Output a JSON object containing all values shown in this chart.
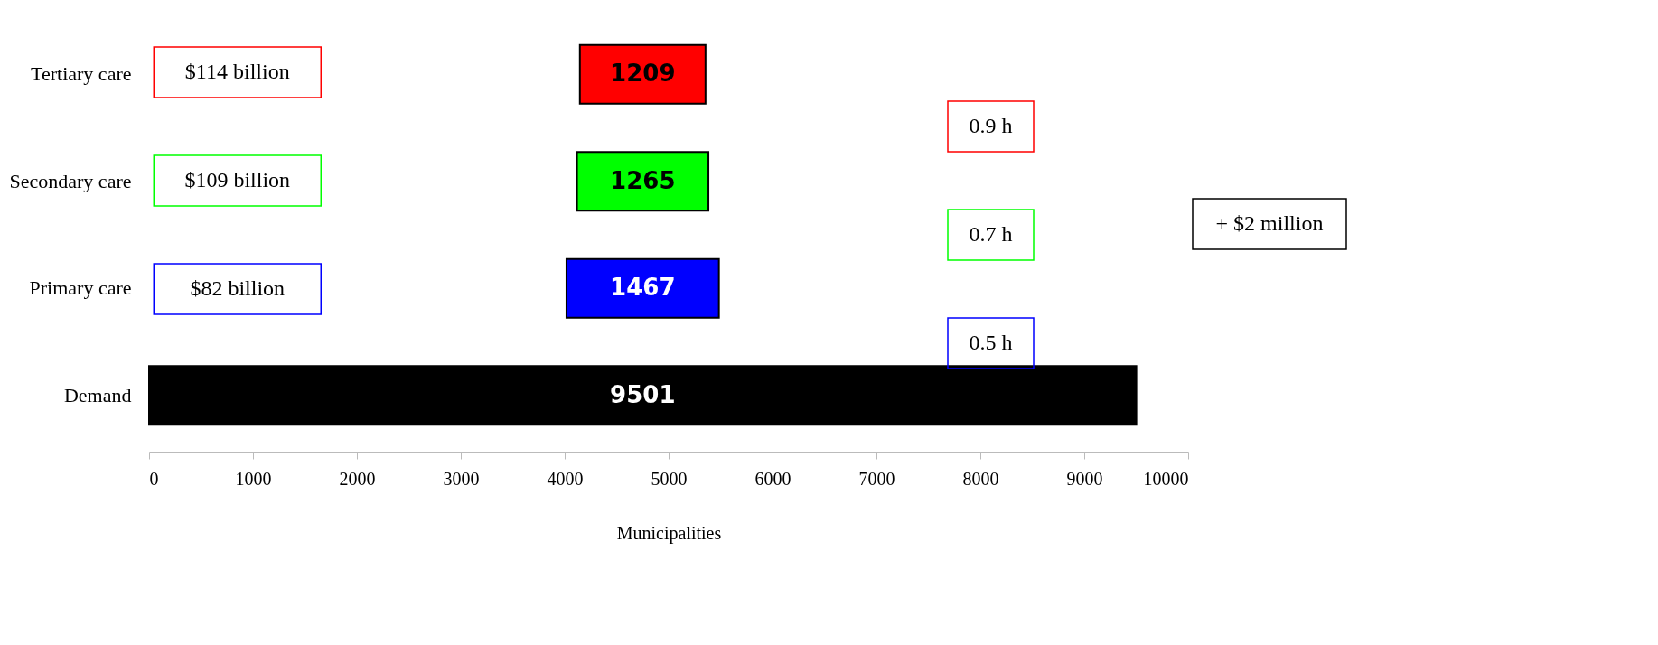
{
  "chart_data": {
    "type": "bar",
    "orientation": "horizontal",
    "categories": [
      "Tertiary care",
      "Secondary care",
      "Primary care",
      "Demand"
    ],
    "values": [
      1209,
      1265,
      1467,
      9501
    ],
    "base": [
      4146,
      4118,
      4017,
      0
    ],
    "colors": [
      "#ff0000",
      "#00ff00",
      "#0000ff",
      "#000000"
    ],
    "data_labels": true,
    "xlabel": "Municipalities",
    "xlim": [
      0,
      10000
    ],
    "xticks": [
      0,
      1000,
      2000,
      3000,
      4000,
      5000,
      6000,
      7000,
      8000,
      9000,
      10000
    ],
    "grid": false,
    "annotations": [
      "$114 billion",
      "$109 billion",
      "$82 billion",
      "0.9 h",
      "0.7 h",
      "0.5 h",
      "+ $2 million"
    ]
  }
}
